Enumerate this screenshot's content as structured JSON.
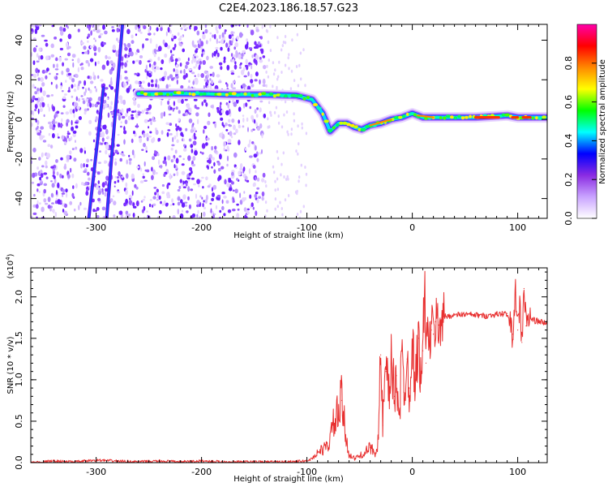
{
  "title": "C2E4.2023.186.18.57.G23",
  "chart_data": [
    {
      "type": "heatmap",
      "xlabel": "Height of straight line (km)",
      "ylabel": "Frequency (Hz)",
      "xlim": [
        -362,
        128
      ],
      "ylim": [
        -50,
        48
      ],
      "xticks": [
        -300,
        -200,
        -100,
        0,
        100
      ],
      "xtick_labels": [
        "-300",
        "-200",
        "-100",
        "0",
        "100"
      ],
      "yticks": [
        40,
        20,
        0,
        -20,
        -40
      ],
      "ytick_labels": [
        "40",
        "20",
        "0",
        "-20",
        "-40"
      ],
      "ridge": {
        "x": [
          -260,
          -230,
          -200,
          -170,
          -140,
          -110,
          -95,
          -85,
          -78,
          -70,
          -62,
          -55,
          -48,
          -40,
          -30,
          -20,
          -10,
          0,
          10,
          30,
          60,
          90,
          100,
          110,
          128
        ],
        "y": [
          13,
          13,
          13,
          12.5,
          12.5,
          12,
          10,
          3,
          -6,
          -2,
          -2,
          -4,
          -5,
          -3,
          -2,
          0,
          1,
          3,
          1,
          1,
          1,
          2,
          1,
          1,
          1
        ]
      },
      "streaks": [
        {
          "x": [
            -307,
            -293
          ],
          "y": [
            -50,
            16
          ]
        },
        {
          "x": [
            -290,
            -275
          ],
          "y": [
            -50,
            48
          ]
        }
      ],
      "noise_x_range": [
        -362,
        -140
      ],
      "colorbar": {
        "label": "Normalized spectral amplitude",
        "range": [
          0,
          1
        ],
        "ticks": [
          0.0,
          0.2,
          0.4,
          0.6,
          0.8
        ],
        "tick_labels": [
          "0.0",
          "0.2",
          "0.4",
          "0.6",
          "0.8"
        ],
        "colors": [
          "#ffffff",
          "#c9a3ff",
          "#8a2be2",
          "#0000ff",
          "#00ffff",
          "#00ff00",
          "#ffff00",
          "#ff8800",
          "#ff0000",
          "#ff00aa"
        ]
      }
    },
    {
      "type": "line",
      "xlabel": "Height of straight line (km)",
      "ylabel": "SNR (10 * v/v)",
      "exponent_label": "(x10",
      "exponent_power": "4",
      "exponent_close": ")",
      "xlim": [
        -362,
        128
      ],
      "ylim": [
        0,
        2.35
      ],
      "xticks": [
        -300,
        -200,
        -100,
        0,
        100
      ],
      "xtick_labels": [
        "-300",
        "-200",
        "-100",
        "0",
        "100"
      ],
      "yticks": [
        0.0,
        0.5,
        1.0,
        1.5,
        2.0
      ],
      "ytick_labels": [
        "0.0",
        "0.5",
        "1.0",
        "1.5",
        "2.0"
      ],
      "color": "#e83030",
      "series": [
        {
          "name": "SNR",
          "x": [
            -362,
            -340,
            -320,
            -300,
            -280,
            -260,
            -240,
            -220,
            -200,
            -180,
            -160,
            -140,
            -120,
            -100,
            -95,
            -90,
            -80,
            -75,
            -70,
            -67,
            -63,
            -60,
            -55,
            -50,
            -45,
            -40,
            -35,
            -32,
            -30,
            -28,
            -25,
            -22,
            -20,
            -17,
            -15,
            -12,
            -10,
            -8,
            -5,
            -3,
            0,
            3,
            6,
            8,
            10,
            12,
            13,
            14,
            16,
            18,
            20,
            22,
            25,
            28,
            30,
            35,
            40,
            50,
            60,
            70,
            80,
            90,
            95,
            98,
            100,
            102,
            104,
            106,
            108,
            110,
            115,
            120,
            128
          ],
          "y": [
            0.0,
            0.02,
            0.01,
            0.03,
            0.02,
            0.01,
            0.02,
            0.01,
            0.02,
            0.01,
            0.01,
            0.01,
            0.01,
            0.02,
            0.05,
            0.12,
            0.2,
            0.45,
            0.6,
            0.75,
            0.3,
            0.1,
            0.05,
            0.08,
            0.12,
            0.18,
            0.12,
            0.3,
            1.3,
            0.45,
            1.1,
            0.75,
            1.25,
            0.8,
            1.05,
            0.6,
            1.35,
            0.85,
            1.25,
            0.9,
            1.4,
            1.0,
            1.5,
            0.95,
            1.35,
            2.35,
            1.2,
            1.55,
            1.45,
            1.6,
            1.55,
            1.7,
            1.66,
            1.75,
            1.76,
            1.77,
            1.78,
            1.79,
            1.78,
            1.77,
            1.79,
            1.8,
            1.55,
            2.05,
            1.6,
            1.9,
            1.45,
            2.1,
            1.65,
            1.75,
            1.72,
            1.7,
            1.68
          ]
        }
      ]
    }
  ]
}
